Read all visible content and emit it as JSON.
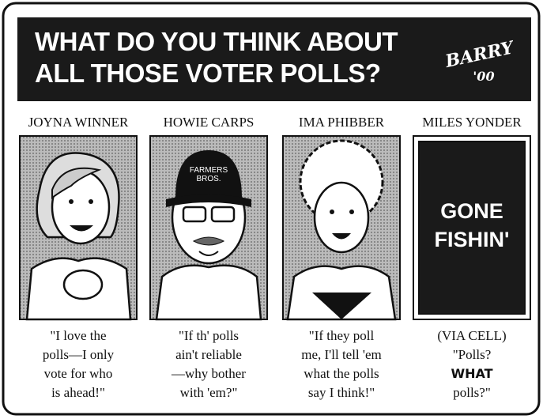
{
  "header": {
    "title_lines": [
      "WHAT DO YOU THINK ABOUT",
      "ALL THOSE VOTER POLLS?"
    ],
    "signature": [
      "BARRY",
      "'00"
    ]
  },
  "panels": [
    {
      "name": "JOYNA WINNER",
      "caption": [
        "\"I love the",
        "polls—I only",
        "vote for who",
        "is ahead!\""
      ]
    },
    {
      "name": "HOWIE CARPS",
      "hat": [
        "FARMERS",
        "BROS."
      ],
      "caption": [
        "\"If th' polls",
        "ain't reliable",
        "—why bother",
        "with 'em?\""
      ]
    },
    {
      "name": "IMA PHIBBER",
      "caption": [
        "\"If they poll",
        "me, I'll tell 'em",
        "what the polls",
        "say I think!\""
      ]
    },
    {
      "name": "MILES YONDER",
      "sign": [
        "GONE",
        "FISHIN'"
      ],
      "caption": [
        "(VIA CELL)",
        "\"Polls?",
        "WHAT",
        "polls?\""
      ]
    }
  ]
}
